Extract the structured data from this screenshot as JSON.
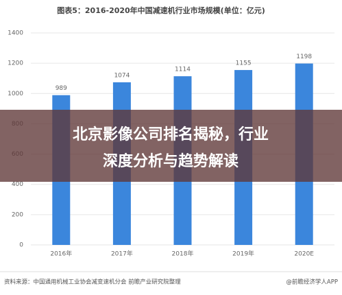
{
  "chart_data": {
    "type": "bar",
    "title": "图表5：2016-2020年中国减速机行业市场规模(单位：亿元)",
    "categories": [
      "2016年",
      "2017年",
      "2018年",
      "2019年",
      "2020E"
    ],
    "values": [
      989,
      1074,
      1114,
      1155,
      1198
    ],
    "color": "#3b86dc",
    "ylim": [
      0,
      1400
    ],
    "yticks": [
      0,
      200,
      400,
      600,
      800,
      1000,
      1200,
      1400
    ],
    "grid": true,
    "source": "资料来源：中国通用机械工业协会减变速机分会 前瞻产业研究院整理",
    "brand": "@前瞻经济学人APP",
    "overlay_lines": [
      "北京影像公司排名揭秘，行业",
      "深度分析与趋势解读"
    ]
  }
}
